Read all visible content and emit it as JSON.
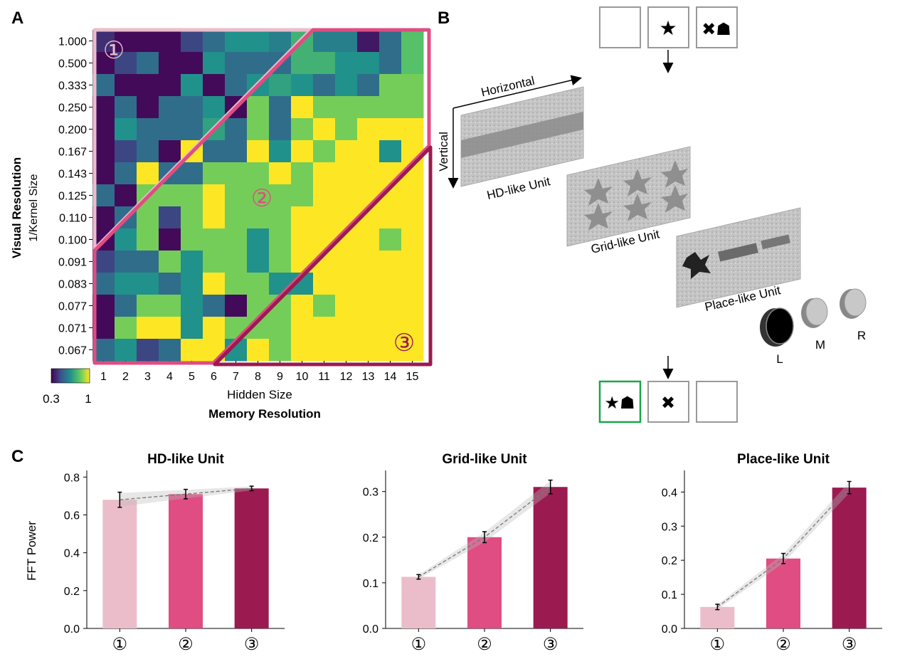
{
  "panels": {
    "a": "A",
    "b": "B",
    "c": "C"
  },
  "heatmap": {
    "y_ticks": [
      "1.000",
      "0.500",
      "0.333",
      "0.250",
      "0.200",
      "0.167",
      "0.143",
      "0.125",
      "0.110",
      "0.100",
      "0.091",
      "0.083",
      "0.077",
      "0.071",
      "0.067"
    ],
    "x_ticks": [
      "1",
      "2",
      "3",
      "4",
      "5",
      "6",
      "7",
      "8",
      "9",
      "10",
      "11",
      "12",
      "13",
      "14",
      "15"
    ],
    "ylabel_outer": "Visual Resolution",
    "ylabel_inner": "1/Kernel Size",
    "xlabel_inner": "Hidden Size",
    "xlabel_outer": "Memory Resolution",
    "colorbar_min": "0.3",
    "colorbar_max": "1",
    "region_labels": [
      "①",
      "②",
      "③"
    ],
    "values": [
      [
        0.4,
        0.32,
        0.32,
        0.32,
        0.45,
        0.55,
        0.65,
        0.65,
        0.6,
        0.75,
        0.6,
        0.6,
        0.35,
        0.55,
        0.8
      ],
      [
        0.32,
        0.45,
        0.55,
        0.32,
        0.32,
        0.65,
        0.55,
        0.55,
        0.55,
        0.75,
        0.75,
        0.65,
        0.65,
        0.55,
        0.8
      ],
      [
        0.55,
        0.32,
        0.32,
        0.32,
        0.65,
        0.32,
        0.55,
        0.65,
        0.7,
        0.65,
        0.55,
        0.65,
        0.55,
        0.85,
        0.85
      ],
      [
        0.32,
        0.55,
        0.32,
        0.55,
        0.55,
        0.65,
        0.32,
        0.85,
        0.55,
        1.0,
        0.85,
        0.85,
        0.85,
        0.85,
        0.85
      ],
      [
        0.32,
        0.65,
        0.55,
        0.55,
        0.55,
        0.7,
        0.55,
        0.85,
        0.55,
        0.85,
        1.0,
        0.85,
        1.0,
        1.0,
        1.0
      ],
      [
        0.32,
        0.45,
        0.55,
        0.32,
        1.0,
        0.55,
        0.55,
        1.0,
        0.65,
        1.0,
        0.85,
        1.0,
        1.0,
        0.65,
        1.0
      ],
      [
        0.32,
        0.55,
        1.0,
        0.55,
        0.55,
        0.85,
        0.85,
        0.85,
        1.0,
        0.85,
        1.0,
        1.0,
        1.0,
        1.0,
        1.0
      ],
      [
        0.55,
        0.32,
        0.85,
        0.85,
        0.85,
        1.0,
        0.85,
        0.85,
        0.85,
        0.85,
        1.0,
        1.0,
        1.0,
        1.0,
        1.0
      ],
      [
        0.32,
        0.55,
        0.85,
        0.45,
        0.85,
        1.0,
        0.85,
        0.85,
        0.85,
        1.0,
        1.0,
        1.0,
        1.0,
        1.0,
        1.0
      ],
      [
        0.32,
        0.65,
        0.85,
        0.32,
        0.85,
        0.85,
        0.85,
        0.65,
        0.85,
        1.0,
        1.0,
        1.0,
        1.0,
        0.85,
        1.0
      ],
      [
        0.45,
        0.55,
        0.55,
        0.85,
        0.65,
        0.85,
        0.85,
        0.65,
        0.85,
        1.0,
        1.0,
        1.0,
        1.0,
        1.0,
        1.0
      ],
      [
        0.55,
        0.65,
        0.65,
        0.55,
        0.65,
        1.0,
        0.85,
        0.85,
        0.65,
        0.65,
        1.0,
        1.0,
        1.0,
        1.0,
        1.0
      ],
      [
        0.32,
        0.55,
        0.85,
        0.85,
        0.65,
        0.55,
        0.32,
        0.85,
        0.85,
        1.0,
        0.85,
        1.0,
        1.0,
        1.0,
        1.0
      ],
      [
        0.32,
        0.85,
        1.0,
        1.0,
        0.65,
        1.0,
        0.85,
        0.85,
        0.85,
        1.0,
        1.0,
        1.0,
        1.0,
        1.0,
        1.0
      ],
      [
        0.55,
        0.65,
        0.45,
        0.55,
        1.0,
        1.0,
        0.65,
        1.0,
        0.85,
        1.0,
        1.0,
        1.0,
        1.0,
        1.0,
        1.0
      ]
    ]
  },
  "task": {
    "axis_horizontal": "Horizontal",
    "axis_vertical": "Vertical",
    "hd_label": "HD-like Unit",
    "grid_label": "Grid-like Unit",
    "place_label": "Place-like Unit",
    "button_left": "L",
    "button_middle": "M",
    "button_right": "R",
    "top_box_icons": [
      "",
      "★",
      "✖☗"
    ],
    "bottom_box_icons": [
      "★☗",
      "✖",
      ""
    ],
    "selection_color": "#1aa64a"
  },
  "chart_data": [
    {
      "type": "bar",
      "title": "HD-like Unit",
      "ylabel": "FFT Power",
      "categories": [
        "①",
        "②",
        "③"
      ],
      "values": [
        0.68,
        0.71,
        0.74
      ],
      "errors": [
        0.04,
        0.025,
        0.012
      ],
      "ylim": [
        0,
        0.82
      ],
      "yticks": [
        "0.0",
        "0.2",
        "0.4",
        "0.6",
        "0.8"
      ],
      "yticks_values": [
        0,
        0.2,
        0.4,
        0.6,
        0.8
      ],
      "colors": [
        "#ebbdca",
        "#df4d82",
        "#9b1a50"
      ]
    },
    {
      "type": "bar",
      "title": "Grid-like Unit",
      "ylabel": "",
      "categories": [
        "①",
        "②",
        "③"
      ],
      "values": [
        0.113,
        0.2,
        0.31
      ],
      "errors": [
        0.005,
        0.012,
        0.015
      ],
      "ylim": [
        0,
        0.34
      ],
      "yticks": [
        "0.0",
        "0.1",
        "0.2",
        "0.3"
      ],
      "yticks_values": [
        0,
        0.1,
        0.2,
        0.3
      ],
      "colors": [
        "#ebbdca",
        "#df4d82",
        "#9b1a50"
      ]
    },
    {
      "type": "bar",
      "title": "Place-like Unit",
      "ylabel": "",
      "categories": [
        "①",
        "②",
        "③"
      ],
      "values": [
        0.063,
        0.205,
        0.413
      ],
      "errors": [
        0.008,
        0.015,
        0.018
      ],
      "ylim": [
        0,
        0.455
      ],
      "yticks": [
        "0.0",
        "0.1",
        "0.2",
        "0.3",
        "0.4"
      ],
      "yticks_values": [
        0,
        0.1,
        0.2,
        0.3,
        0.4
      ],
      "colors": [
        "#ebbdca",
        "#df4d82",
        "#9b1a50"
      ]
    }
  ]
}
